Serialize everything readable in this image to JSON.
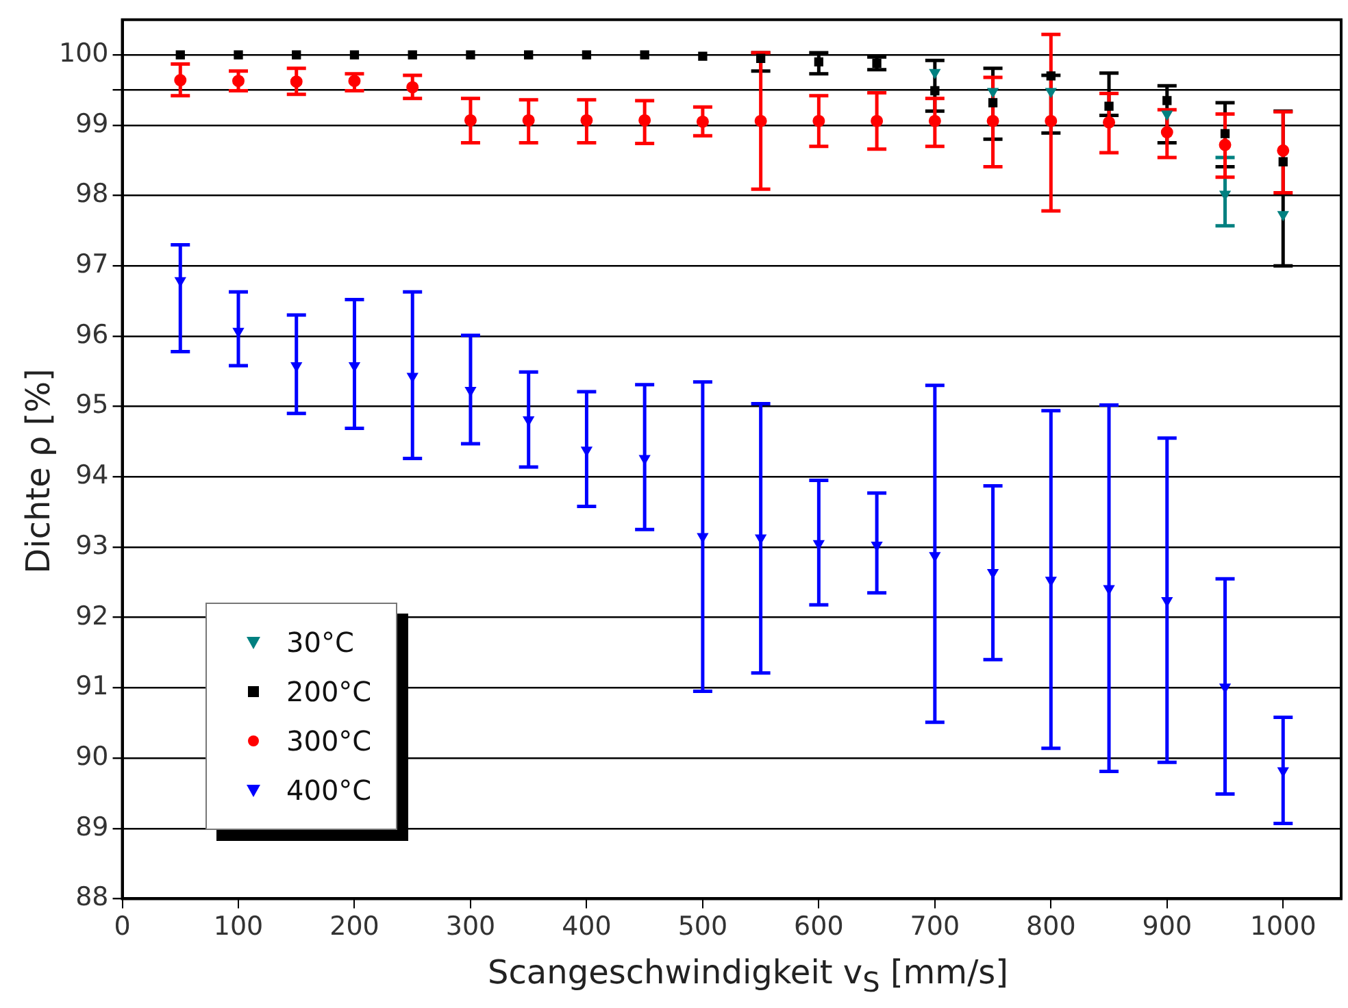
{
  "chart_data": {
    "type": "scatter",
    "xlabel": "Scangeschwindigkeit v$_{S}$ [mm/s]",
    "ylabel": "Dichte ρ [%]",
    "x": [
      50,
      100,
      150,
      200,
      250,
      300,
      350,
      400,
      450,
      500,
      550,
      600,
      650,
      700,
      750,
      800,
      850,
      900,
      950,
      1000
    ],
    "xlim": [
      0,
      1050
    ],
    "xticks": [
      0,
      100,
      200,
      300,
      400,
      500,
      600,
      700,
      800,
      900,
      1000
    ],
    "ylim": [
      88,
      100.5
    ],
    "yticks": [
      88,
      89,
      90,
      91,
      92,
      93,
      94,
      95,
      96,
      97,
      98,
      99,
      {
        "value": 99.5,
        "label": null
      },
      100
    ],
    "grid": "y",
    "legend": "bottom left",
    "series": [
      {
        "name": "30°C",
        "color": "#008080",
        "marker": "triangle",
        "values": [
          null,
          null,
          null,
          null,
          null,
          null,
          null,
          null,
          null,
          null,
          null,
          null,
          null,
          99.75,
          99.48,
          99.48,
          null,
          99.16,
          98.02,
          97.73
        ],
        "errors": [
          null,
          null,
          null,
          null,
          null,
          null,
          null,
          null,
          null,
          null,
          null,
          null,
          null,
          null,
          null,
          null,
          null,
          null,
          [
            97.57,
            98.54
          ],
          null
        ]
      },
      {
        "name": "200°C",
        "color": "#000000",
        "marker": "square",
        "values": [
          100,
          100,
          100,
          100,
          100,
          100,
          100,
          100,
          100,
          99.98,
          99.95,
          99.9,
          99.88,
          99.49,
          99.32,
          99.7,
          99.27,
          99.35,
          98.88,
          98.48
        ],
        "errors": [
          null,
          null,
          null,
          null,
          null,
          null,
          null,
          null,
          null,
          null,
          [
            99.77,
            100.03
          ],
          [
            99.73,
            100.03
          ],
          [
            99.79,
            99.97
          ],
          [
            99.2,
            99.92
          ],
          [
            98.8,
            99.81
          ],
          [
            98.89,
            99.71
          ],
          [
            99.14,
            99.74
          ],
          [
            98.75,
            99.56
          ],
          [
            98.41,
            99.32
          ],
          [
            97.0,
            99.2
          ]
        ]
      },
      {
        "name": "300°C",
        "color": "#ff0000",
        "marker": "circle",
        "values": [
          99.64,
          99.63,
          99.62,
          99.63,
          99.54,
          99.07,
          99.07,
          99.07,
          99.07,
          99.05,
          99.06,
          99.06,
          99.06,
          99.06,
          99.06,
          99.06,
          99.04,
          98.9,
          98.72,
          98.64
        ],
        "errors": [
          [
            99.42,
            99.87
          ],
          [
            99.49,
            99.77
          ],
          [
            99.44,
            99.81
          ],
          [
            99.49,
            99.73
          ],
          [
            99.38,
            99.71
          ],
          [
            98.75,
            99.38
          ],
          [
            98.75,
            99.36
          ],
          [
            98.75,
            99.36
          ],
          [
            98.74,
            99.35
          ],
          [
            98.85,
            99.26
          ],
          [
            98.09,
            100.03
          ],
          [
            98.7,
            99.42
          ],
          [
            98.66,
            99.46
          ],
          [
            98.7,
            99.38
          ],
          [
            98.41,
            99.68
          ],
          [
            97.78,
            100.29
          ],
          [
            98.61,
            99.45
          ],
          [
            98.54,
            99.22
          ],
          [
            98.26,
            99.16
          ],
          [
            98.04,
            99.19
          ]
        ]
      },
      {
        "name": "400°C",
        "color": "#0000ff",
        "marker": "triangle",
        "values": [
          96.79,
          96.07,
          95.58,
          95.58,
          95.43,
          95.23,
          94.81,
          94.38,
          94.26,
          93.15,
          93.13,
          93.05,
          93.03,
          92.88,
          92.64,
          92.53,
          92.41,
          92.24,
          91.01,
          89.82
        ],
        "errors": [
          [
            95.78,
            97.3
          ],
          [
            95.58,
            96.63
          ],
          [
            94.9,
            96.3
          ],
          [
            94.69,
            96.52
          ],
          [
            94.26,
            96.63
          ],
          [
            94.47,
            96.01
          ],
          [
            94.14,
            95.49
          ],
          [
            93.58,
            95.21
          ],
          [
            93.25,
            95.31
          ],
          [
            90.95,
            95.35
          ],
          [
            91.21,
            95.04
          ],
          [
            92.18,
            93.95
          ],
          [
            92.35,
            93.77
          ],
          [
            90.51,
            95.3
          ],
          [
            91.4,
            93.87
          ],
          [
            90.14,
            94.94
          ],
          [
            89.81,
            95.02
          ],
          [
            89.94,
            94.55
          ],
          [
            89.49,
            92.55
          ],
          [
            89.07,
            90.58
          ]
        ]
      }
    ]
  }
}
